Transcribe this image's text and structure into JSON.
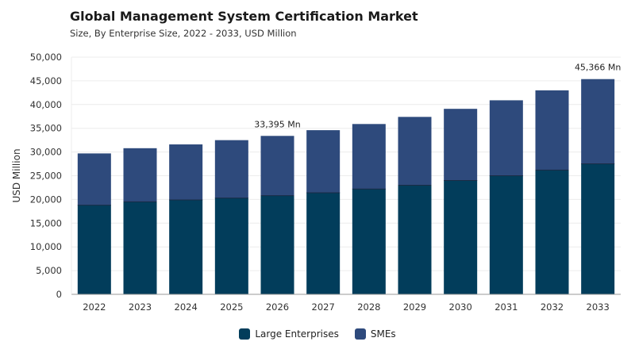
{
  "header": {
    "title": "Global Management System Certification Market",
    "subtitle": "Size, By Enterprise Size, 2022 - 2033, USD Million"
  },
  "colors": {
    "large_enterprises": "#023d5b",
    "smes": "#2e4a7c",
    "grid": "#ececec",
    "axis": "#999999"
  },
  "chart_data": {
    "type": "bar",
    "stacked": true,
    "title": "Global Management System Certification Market",
    "subtitle": "Size, By Enterprise Size, 2022 - 2033, USD Million",
    "xlabel": "",
    "ylabel": "USD Million",
    "ylim": [
      0,
      50000
    ],
    "yticks": [
      0,
      5000,
      10000,
      15000,
      20000,
      25000,
      30000,
      35000,
      40000,
      45000,
      50000
    ],
    "ytick_labels": [
      "0",
      "5,000",
      "10,000",
      "15,000",
      "20,000",
      "25,000",
      "30,000",
      "35,000",
      "40,000",
      "45,000",
      "50,000"
    ],
    "grid": true,
    "legend_position": "bottom",
    "categories": [
      "2022",
      "2023",
      "2024",
      "2025",
      "2026",
      "2027",
      "2028",
      "2029",
      "2030",
      "2031",
      "2032",
      "2033"
    ],
    "series": [
      {
        "name": "Large Enterprises",
        "values": [
          18800,
          19500,
          19900,
          20300,
          20800,
          21400,
          22200,
          23000,
          24000,
          25000,
          26200,
          27500
        ]
      },
      {
        "name": "SMEs",
        "values": [
          10900,
          11300,
          11700,
          12200,
          12595,
          13200,
          13700,
          14400,
          15100,
          15900,
          16800,
          17866
        ]
      }
    ],
    "annotations": [
      {
        "category": "2026",
        "text": "33,395 Mn"
      },
      {
        "category": "2033",
        "text": "45,366 Mn"
      }
    ]
  }
}
